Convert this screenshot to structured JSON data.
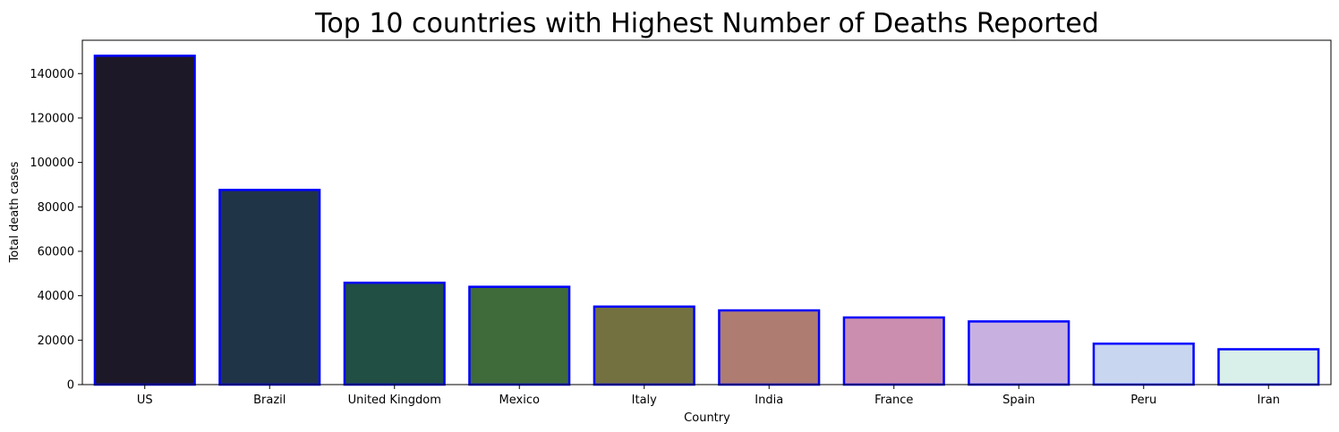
{
  "chart_data": {
    "type": "bar",
    "title": "Top 10 countries with Highest Number of Deaths Reported",
    "xlabel": "Country",
    "ylabel": "Total death cases",
    "categories": [
      "US",
      "Brazil",
      "United Kingdom",
      "Mexico",
      "Italy",
      "India",
      "France",
      "Spain",
      "Peru",
      "Iran"
    ],
    "values": [
      148011,
      87618,
      45844,
      44022,
      35112,
      33408,
      30212,
      28432,
      18418,
      15912
    ],
    "ylim": [
      0,
      155000
    ],
    "yticks": [
      0,
      20000,
      40000,
      60000,
      80000,
      100000,
      120000,
      140000
    ],
    "bar_colors": [
      "#1d1827",
      "#203448",
      "#214f43",
      "#3f6b3a",
      "#747140",
      "#ae7c71",
      "#cb8eae",
      "#c8b1e0",
      "#c8d6f0",
      "#d8efea"
    ],
    "bar_edge_color": "#0000ff",
    "grid": false,
    "legend": "none"
  }
}
